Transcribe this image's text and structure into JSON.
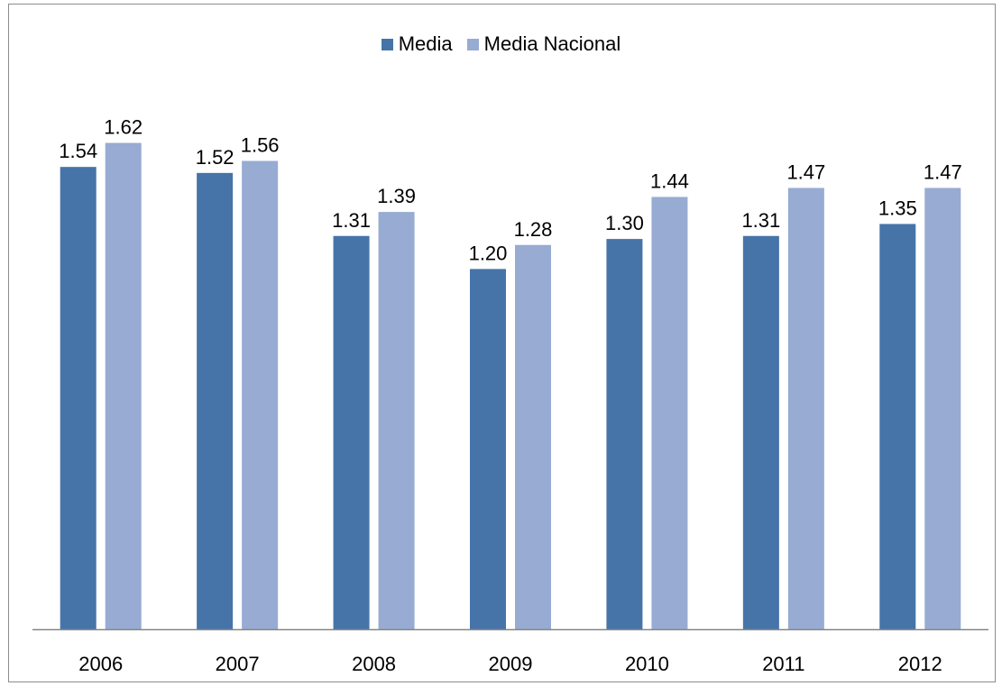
{
  "chart_data": {
    "type": "bar",
    "categories": [
      "2006",
      "2007",
      "2008",
      "2009",
      "2010",
      "2011",
      "2012"
    ],
    "series": [
      {
        "name": "Media",
        "values": [
          1.54,
          1.52,
          1.31,
          1.2,
          1.3,
          1.31,
          1.35
        ],
        "color": "#4674a8"
      },
      {
        "name": "Media Nacional",
        "values": [
          1.62,
          1.56,
          1.39,
          1.28,
          1.44,
          1.47,
          1.47
        ],
        "color": "#97abd3"
      }
    ],
    "value_labels": {
      "Media": [
        "1.54",
        "1.52",
        "1.31",
        "1.20",
        "1.30",
        "1.31",
        "1.35"
      ],
      "Media Nacional": [
        "1.62",
        "1.56",
        "1.39",
        "1.28",
        "1.44",
        "1.47",
        "1.47"
      ]
    },
    "ylim": [
      0,
      2.0
    ],
    "grid": false,
    "legend_position": "top-center",
    "axis_color": "#868686"
  }
}
